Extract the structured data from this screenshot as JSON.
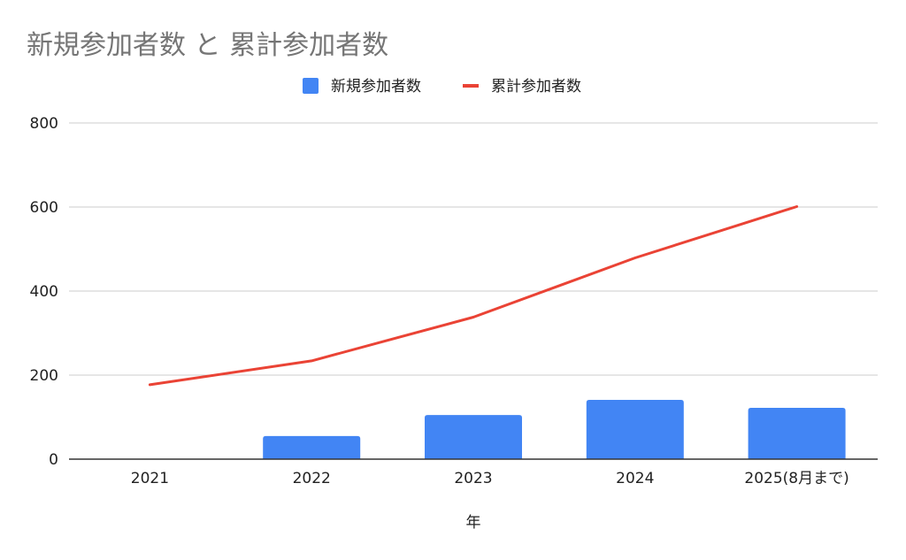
{
  "chart_data": {
    "type": "bar",
    "title": "新規参加者数 と 累計参加者数",
    "xlabel": "年",
    "ylabel": "",
    "categories": [
      "2021",
      "2022",
      "2023",
      "2024",
      "2025(8月まで)"
    ],
    "ylim": [
      0,
      800
    ],
    "yticks": [
      0,
      200,
      400,
      600,
      800
    ],
    "grid": true,
    "legend_position": "top-center",
    "series": [
      {
        "name": "新規参加者数",
        "type": "bar",
        "color": "#4285F4",
        "values": [
          0,
          55,
          105,
          141,
          122
        ]
      },
      {
        "name": "累計参加者数",
        "type": "line",
        "color": "#EA4335",
        "values": [
          177,
          234,
          338,
          479,
          601
        ]
      }
    ]
  }
}
